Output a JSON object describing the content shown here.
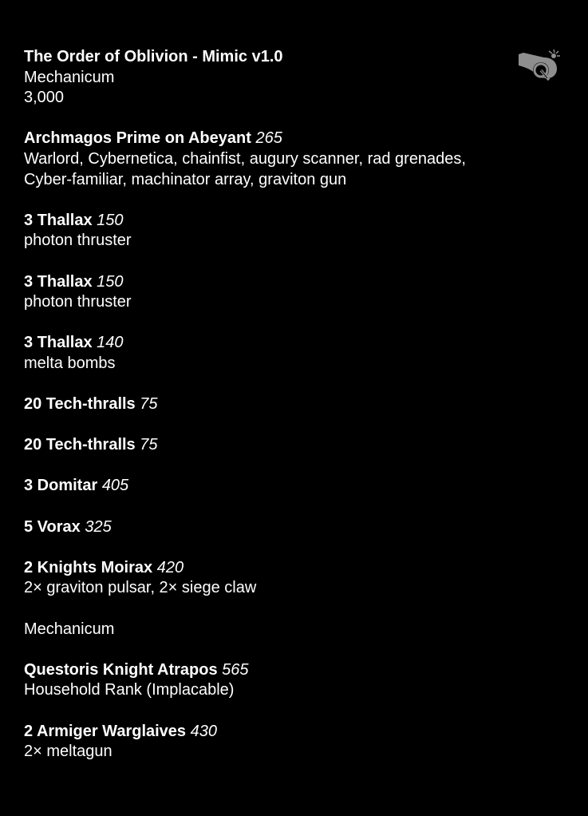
{
  "header": {
    "title": "The Order of Oblivion - Mimic v1.0",
    "faction": "Mechanicum",
    "points_total": "3,000"
  },
  "logo": {
    "icon": "cannon-q-logo-icon",
    "color": "#8e8e8e"
  },
  "sections": [
    {
      "heading": "",
      "units": [
        {
          "name": "Archmagos Prime on Abeyant",
          "points": "265",
          "details": [
            "Warlord, Cybernetica, chainfist, augury scanner, rad grenades,",
            "Cyber-familiar, machinator array, graviton gun"
          ]
        },
        {
          "name": "3 Thallax",
          "points": "150",
          "details": [
            "photon thruster"
          ]
        },
        {
          "name": "3 Thallax",
          "points": "150",
          "details": [
            "photon thruster"
          ]
        },
        {
          "name": "3 Thallax",
          "points": "140",
          "details": [
            "melta bombs"
          ]
        },
        {
          "name": "20 Tech-thralls",
          "points": "75",
          "details": []
        },
        {
          "name": "20 Tech-thralls",
          "points": "75",
          "details": []
        },
        {
          "name": "3 Domitar",
          "points": "405",
          "details": []
        },
        {
          "name": "5 Vorax",
          "points": "325",
          "details": []
        },
        {
          "name": "2 Knights Moirax",
          "points": "420",
          "details": [
            "2× graviton pulsar, 2× siege claw"
          ]
        }
      ]
    },
    {
      "heading": "Mechanicum",
      "units": [
        {
          "name": "Questoris Knight Atrapos",
          "points": "565",
          "details": [
            "Household Rank (Implacable)"
          ]
        },
        {
          "name": "2 Armiger Warglaives",
          "points": "430",
          "details": [
            "2× meltagun"
          ]
        }
      ]
    }
  ]
}
